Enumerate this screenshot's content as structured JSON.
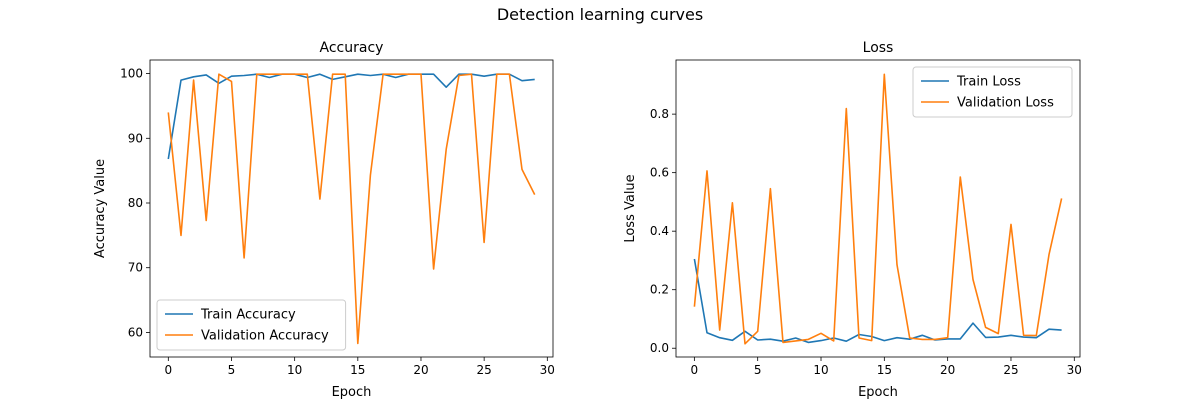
{
  "suptitle": "Detection learning curves",
  "colors": {
    "train": "#1f77b4",
    "validation": "#ff7f0e"
  },
  "chart_data": [
    {
      "type": "line",
      "title": "Accuracy",
      "xlabel": "Epoch",
      "ylabel": "Accuracy Value",
      "xlim": [
        -1.45,
        30.45
      ],
      "ylim": [
        56.2,
        102.1
      ],
      "xticks": [
        0,
        5,
        10,
        15,
        20,
        25,
        30
      ],
      "yticks": [
        60,
        70,
        80,
        90,
        100
      ],
      "legend_position": "lower-left",
      "x": [
        0,
        1,
        2,
        3,
        4,
        5,
        6,
        7,
        8,
        9,
        10,
        11,
        12,
        13,
        14,
        15,
        16,
        17,
        18,
        19,
        20,
        21,
        22,
        23,
        24,
        25,
        26,
        27,
        28,
        29
      ],
      "series": [
        {
          "name": "Train Accuracy",
          "color": "#1f77b4",
          "values": [
            86.8,
            99.0,
            99.5,
            99.8,
            98.5,
            99.6,
            99.7,
            99.9,
            99.4,
            99.9,
            99.9,
            99.4,
            99.9,
            99.1,
            99.5,
            99.9,
            99.7,
            99.9,
            99.4,
            99.9,
            99.9,
            99.9,
            97.9,
            99.9,
            99.9,
            99.6,
            99.9,
            99.9,
            98.9,
            99.1
          ]
        },
        {
          "name": "Validation Accuracy",
          "color": "#ff7f0e",
          "values": [
            94.0,
            75.0,
            99.0,
            77.3,
            99.9,
            98.8,
            71.5,
            99.9,
            99.9,
            99.9,
            99.9,
            99.9,
            80.6,
            99.9,
            99.9,
            58.3,
            84.3,
            99.9,
            99.9,
            99.9,
            99.9,
            69.8,
            88.3,
            99.7,
            99.9,
            73.9,
            99.9,
            99.9,
            85.2,
            81.3
          ]
        }
      ]
    },
    {
      "type": "line",
      "title": "Loss",
      "xlabel": "Epoch",
      "ylabel": "Loss Value",
      "xlim": [
        -1.45,
        30.45
      ],
      "ylim": [
        -0.03,
        0.985
      ],
      "xticks": [
        0,
        5,
        10,
        15,
        20,
        25,
        30
      ],
      "yticks": [
        0.0,
        0.2,
        0.4,
        0.6,
        0.8
      ],
      "legend_position": "upper-right",
      "x": [
        0,
        1,
        2,
        3,
        4,
        5,
        6,
        7,
        8,
        9,
        10,
        11,
        12,
        13,
        14,
        15,
        16,
        17,
        18,
        19,
        20,
        21,
        22,
        23,
        24,
        25,
        26,
        27,
        28,
        29
      ],
      "series": [
        {
          "name": "Train Loss",
          "color": "#1f77b4",
          "values": [
            0.305,
            0.053,
            0.036,
            0.027,
            0.058,
            0.028,
            0.031,
            0.024,
            0.035,
            0.02,
            0.026,
            0.035,
            0.024,
            0.047,
            0.04,
            0.026,
            0.036,
            0.031,
            0.044,
            0.028,
            0.032,
            0.032,
            0.086,
            0.037,
            0.038,
            0.044,
            0.038,
            0.036,
            0.065,
            0.062
          ]
        },
        {
          "name": "Validation Loss",
          "color": "#ff7f0e",
          "values": [
            0.142,
            0.606,
            0.062,
            0.497,
            0.015,
            0.058,
            0.545,
            0.02,
            0.025,
            0.03,
            0.051,
            0.025,
            0.819,
            0.035,
            0.026,
            0.936,
            0.285,
            0.035,
            0.03,
            0.03,
            0.036,
            0.585,
            0.235,
            0.071,
            0.05,
            0.423,
            0.044,
            0.043,
            0.32,
            0.512
          ]
        }
      ]
    }
  ]
}
